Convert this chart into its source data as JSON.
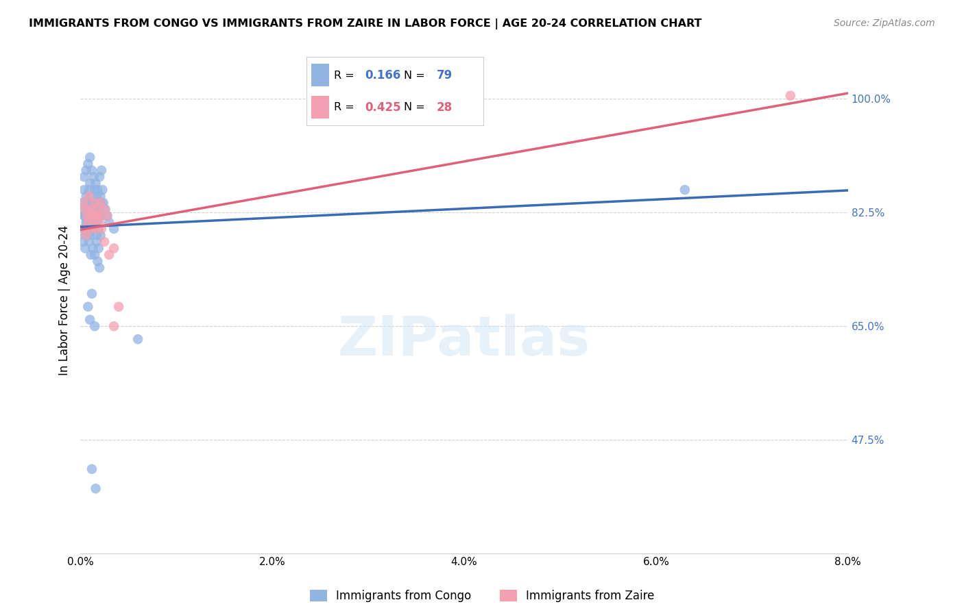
{
  "title": "IMMIGRANTS FROM CONGO VS IMMIGRANTS FROM ZAIRE IN LABOR FORCE | AGE 20-24 CORRELATION CHART",
  "source_text": "Source: ZipAtlas.com",
  "xlabel_ticks": [
    "0.0%",
    "2.0%",
    "4.0%",
    "6.0%",
    "8.0%"
  ],
  "xlabel_vals": [
    0.0,
    0.02,
    0.04,
    0.06,
    0.08
  ],
  "ylabel_ticks": [
    "47.5%",
    "65.0%",
    "82.5%",
    "100.0%"
  ],
  "ylabel_vals": [
    0.475,
    0.65,
    0.825,
    1.0
  ],
  "ylabel_label": "In Labor Force | Age 20-24",
  "legend_label1": "Immigrants from Congo",
  "legend_label2": "Immigrants from Zaire",
  "R_congo": 0.166,
  "N_congo": 79,
  "R_zaire": 0.425,
  "N_zaire": 28,
  "xlim": [
    0.0,
    0.08
  ],
  "ylim": [
    0.3,
    1.08
  ],
  "congo_color": "#92b4e3",
  "zaire_color": "#f4a0b0",
  "congo_line_color": "#3a6bb5",
  "zaire_line_color": "#e0607a",
  "watermark_text": "ZIPatlas",
  "congo_x": [
    0.0002,
    0.0003,
    0.0004,
    0.0005,
    0.0006,
    0.0007,
    0.0008,
    0.0009,
    0.001,
    0.0011,
    0.0012,
    0.0013,
    0.0014,
    0.0015,
    0.0016,
    0.0017,
    0.0018,
    0.0019,
    0.002,
    0.0021,
    0.0022,
    0.0023,
    0.0003,
    0.0005,
    0.0007,
    0.0009,
    0.0011,
    0.0013,
    0.0015,
    0.0017,
    0.0019,
    0.0021,
    0.0004,
    0.0006,
    0.0008,
    0.001,
    0.0012,
    0.0014,
    0.0016,
    0.0018,
    0.002,
    0.0022,
    0.0003,
    0.0005,
    0.0007,
    0.0009,
    0.0011,
    0.0013,
    0.0015,
    0.0017,
    0.0019,
    0.0021,
    0.0004,
    0.0006,
    0.0008,
    0.001,
    0.0012,
    0.0014,
    0.0016,
    0.0018,
    0.002,
    0.0022,
    0.0024,
    0.0026,
    0.0028,
    0.003,
    0.0035,
    0.0018,
    0.002,
    0.0012,
    0.0008,
    0.001,
    0.0015,
    0.006,
    0.063,
    0.0012,
    0.0016,
    0.0018,
    0.002
  ],
  "congo_y": [
    0.84,
    0.83,
    0.86,
    0.82,
    0.85,
    0.84,
    0.83,
    0.86,
    0.87,
    0.85,
    0.84,
    0.83,
    0.82,
    0.86,
    0.84,
    0.85,
    0.83,
    0.84,
    0.82,
    0.85,
    0.84,
    0.86,
    0.8,
    0.79,
    0.81,
    0.8,
    0.82,
    0.8,
    0.81,
    0.79,
    0.8,
    0.82,
    0.88,
    0.89,
    0.9,
    0.91,
    0.89,
    0.88,
    0.87,
    0.86,
    0.88,
    0.89,
    0.78,
    0.77,
    0.79,
    0.78,
    0.76,
    0.77,
    0.76,
    0.78,
    0.77,
    0.79,
    0.82,
    0.81,
    0.8,
    0.79,
    0.81,
    0.8,
    0.82,
    0.81,
    0.83,
    0.82,
    0.84,
    0.83,
    0.82,
    0.81,
    0.8,
    0.75,
    0.74,
    0.7,
    0.68,
    0.66,
    0.65,
    0.63,
    0.86,
    0.43,
    0.4,
    0.84,
    0.83
  ],
  "zaire_x": [
    0.0003,
    0.0005,
    0.0007,
    0.0009,
    0.0011,
    0.0013,
    0.0015,
    0.0017,
    0.0019,
    0.0021,
    0.0004,
    0.0006,
    0.0008,
    0.001,
    0.0012,
    0.0014,
    0.0016,
    0.0018,
    0.002,
    0.0022,
    0.0025,
    0.003,
    0.0035,
    0.004,
    0.0025,
    0.0028,
    0.074,
    0.0035
  ],
  "zaire_y": [
    0.84,
    0.83,
    0.82,
    0.85,
    0.83,
    0.82,
    0.84,
    0.83,
    0.82,
    0.84,
    0.8,
    0.79,
    0.81,
    0.8,
    0.82,
    0.81,
    0.8,
    0.82,
    0.81,
    0.8,
    0.78,
    0.76,
    0.77,
    0.68,
    0.83,
    0.82,
    1.005,
    0.65
  ]
}
